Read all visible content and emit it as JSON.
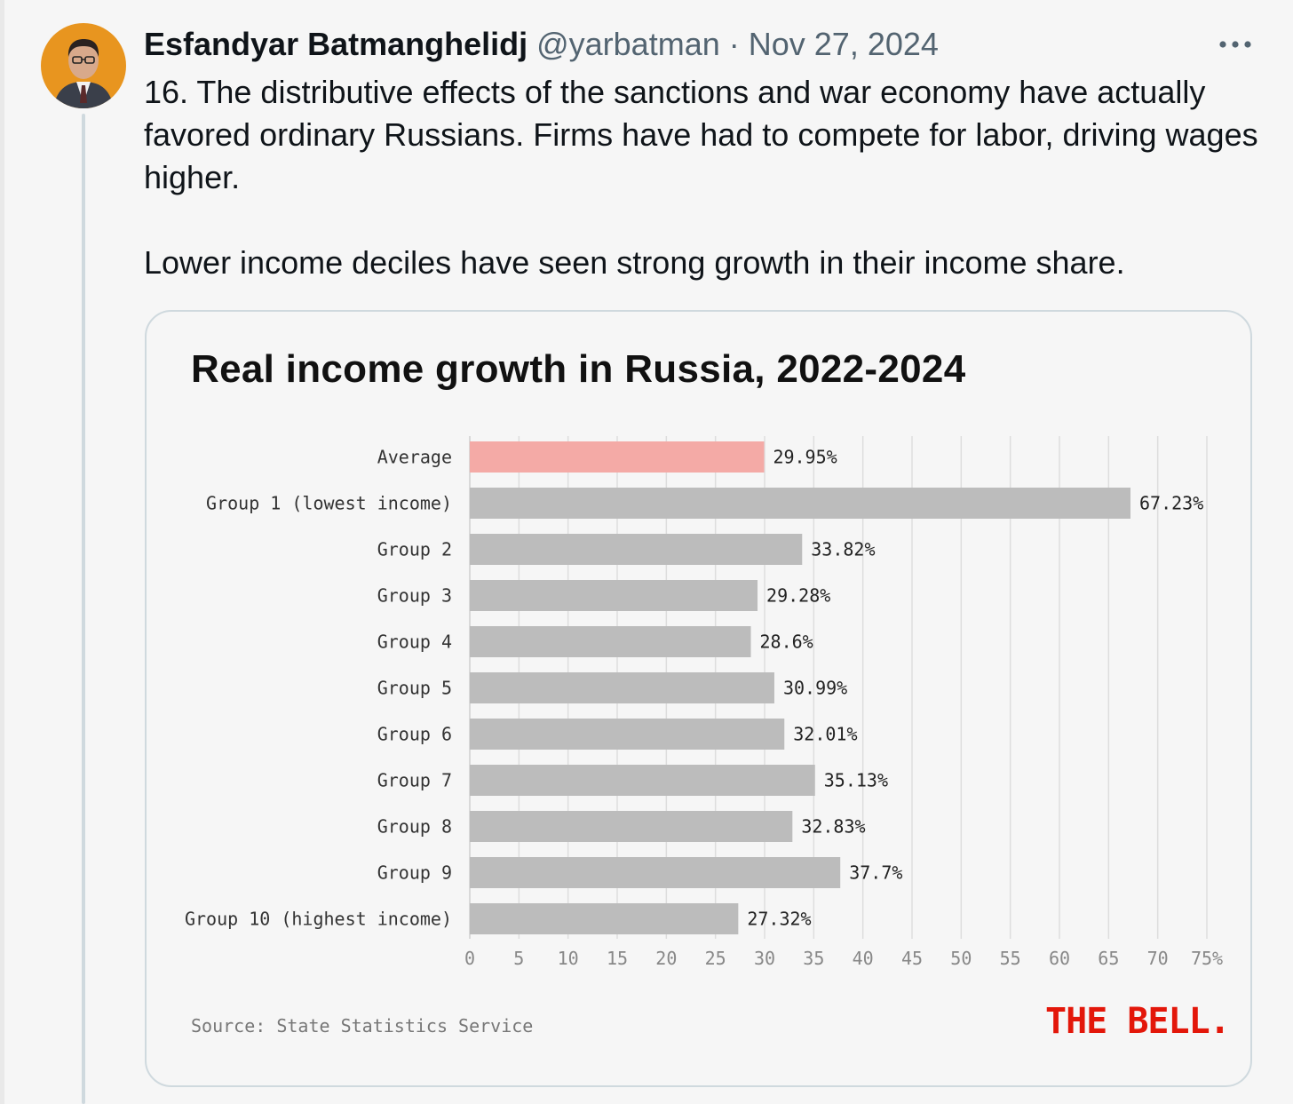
{
  "tweet": {
    "author_name": "Esfandyar Batmanghelidj",
    "handle": "@yarbatman",
    "separator": "·",
    "date": "Nov 27, 2024",
    "paragraphs": [
      "16. The distributive effects of the sanctions and war economy have actually favored ordinary Russians. Firms have had to compete for labor, driving wages higher.",
      "Lower income deciles have seen strong growth in their income share."
    ]
  },
  "icons": {
    "avatar": "profile-photo",
    "more": "more-horizontal-icon"
  },
  "colors": {
    "highlight_bar": "#f4aaa6",
    "bar": "#bcbcbc",
    "brand": "#e3170a",
    "avatar_bg": "#e8951f"
  },
  "chart_data": {
    "type": "bar",
    "orientation": "horizontal",
    "title": "Real income growth in Russia, 2022-2024",
    "categories": [
      "Average",
      "Group 1 (lowest income)",
      "Group 2",
      "Group 3",
      "Group 4",
      "Group 5",
      "Group 6",
      "Group 7",
      "Group 8",
      "Group 9",
      "Group 10 (highest income)"
    ],
    "values": [
      29.95,
      67.23,
      33.82,
      29.28,
      28.6,
      30.99,
      32.01,
      35.13,
      32.83,
      37.7,
      27.32
    ],
    "value_labels": [
      "29.95%",
      "67.23%",
      "33.82%",
      "29.28%",
      "28.6%",
      "30.99%",
      "32.01%",
      "35.13%",
      "32.83%",
      "37.7%",
      "27.32%"
    ],
    "highlight_index": 0,
    "xlim": [
      0,
      75
    ],
    "x_ticks": [
      0,
      5,
      10,
      15,
      20,
      25,
      30,
      35,
      40,
      45,
      50,
      55,
      60,
      65,
      70,
      75
    ],
    "x_tick_labels": [
      "0",
      "5",
      "10",
      "15",
      "20",
      "25",
      "30",
      "35",
      "40",
      "45",
      "50",
      "55",
      "60",
      "65",
      "70",
      "75%"
    ],
    "grid": true,
    "source": "Source: State Statistics Service",
    "brand": "THE BELL."
  }
}
